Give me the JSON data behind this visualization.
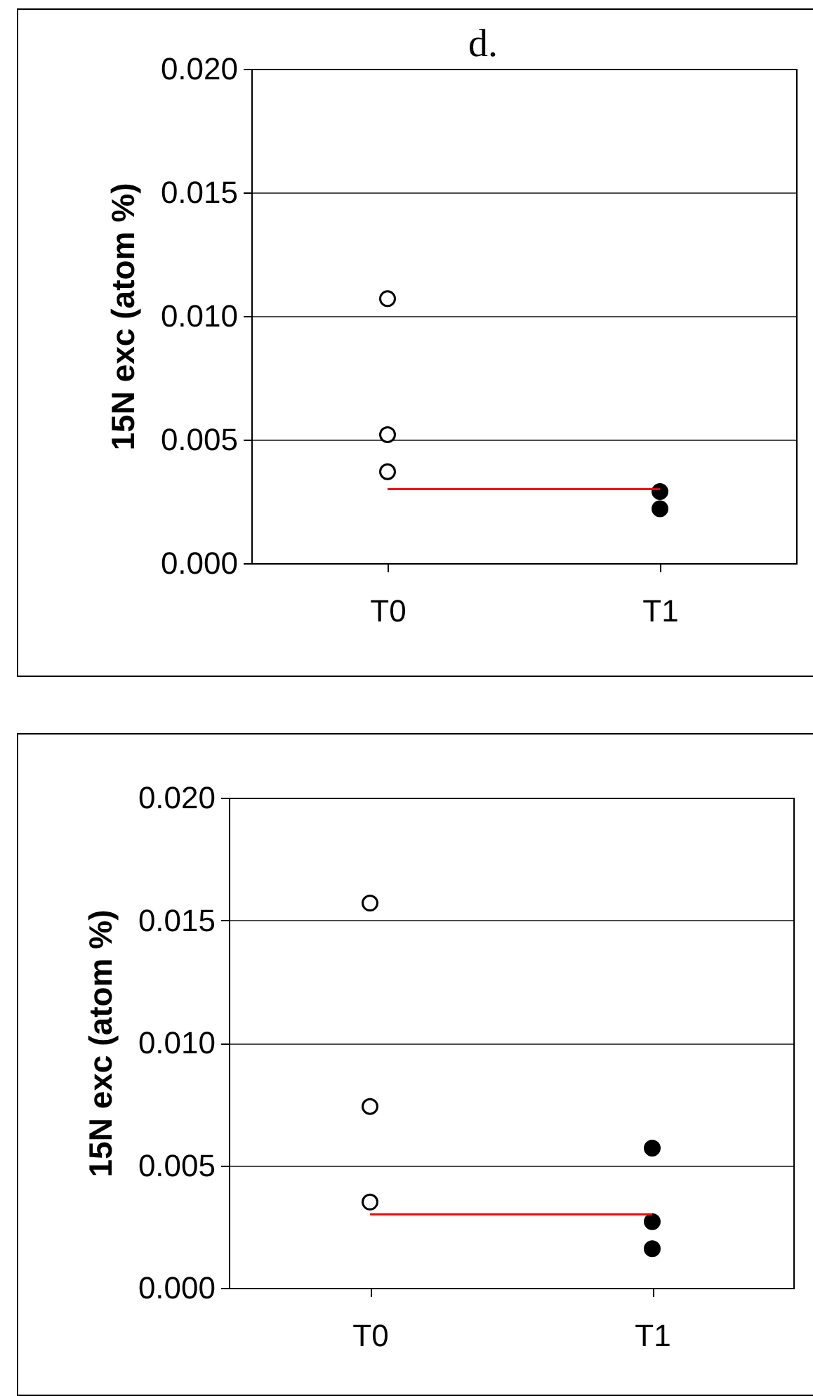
{
  "chart_data": [
    {
      "type": "scatter",
      "title": "d.",
      "ylabel": "15N exc (atom %)",
      "categories": [
        "T0",
        "T1"
      ],
      "ylim": [
        0,
        0.02
      ],
      "yticks": [
        {
          "value": 0,
          "label": "0.000"
        },
        {
          "value": 0.005,
          "label": "0.005"
        },
        {
          "value": 0.01,
          "label": "0.010"
        },
        {
          "value": 0.015,
          "label": "0.015"
        },
        {
          "value": 0.02,
          "label": "0.020"
        }
      ],
      "grid": "y",
      "marker": "circle",
      "series": [
        {
          "type": "scatter",
          "x": [
            "T0",
            "T0",
            "T0"
          ],
          "values": [
            0.0107,
            0.0052,
            0.0037
          ],
          "color": "#ffffff"
        },
        {
          "type": "scatter",
          "x": [
            "T1",
            "T1"
          ],
          "values": [
            0.0029,
            0.0022
          ],
          "color": "#000000"
        },
        {
          "type": "line",
          "x": [
            "T0",
            "T1"
          ],
          "values": [
            0.003,
            0.003
          ],
          "color": "#ff0000",
          "marker": "none"
        }
      ]
    },
    {
      "type": "scatter",
      "ylabel": "15N exc (atom %)",
      "categories": [
        "T0",
        "T1"
      ],
      "ylim": [
        0,
        0.02
      ],
      "yticks": [
        {
          "value": 0,
          "label": "0.000"
        },
        {
          "value": 0.005,
          "label": "0.005"
        },
        {
          "value": 0.01,
          "label": "0.010"
        },
        {
          "value": 0.015,
          "label": "0.015"
        },
        {
          "value": 0.02,
          "label": "0.020"
        }
      ],
      "grid": "y",
      "marker": "circle",
      "series": [
        {
          "type": "scatter",
          "x": [
            "T0",
            "T0",
            "T0"
          ],
          "values": [
            0.0157,
            0.0074,
            0.0035
          ],
          "color": "#ffffff"
        },
        {
          "type": "scatter",
          "x": [
            "T1",
            "T1",
            "T1"
          ],
          "values": [
            0.0057,
            0.0027,
            0.0016
          ],
          "color": "#000000"
        },
        {
          "type": "line",
          "x": [
            "T0",
            "T1"
          ],
          "values": [
            0.003,
            0.003
          ],
          "color": "#ff0000",
          "marker": "none"
        }
      ]
    }
  ]
}
